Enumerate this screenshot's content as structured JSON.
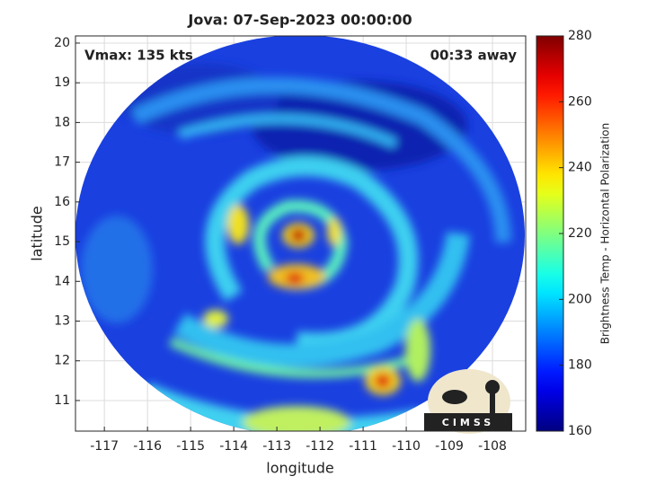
{
  "chart_data": {
    "type": "heatmap",
    "title": "Jova: 07-Sep-2023 00:00:00",
    "annotations": [
      "Vmax: 135 kts",
      "00:33 away"
    ],
    "xlabel": "longitude",
    "ylabel": "latitude",
    "xlim": [
      -117.67,
      -107.23
    ],
    "ylim": [
      10.23,
      20.18
    ],
    "xticks": [
      -117,
      -116,
      -115,
      -114,
      -113,
      -112,
      -111,
      -110,
      -109,
      -108
    ],
    "yticks": [
      11,
      12,
      13,
      14,
      15,
      16,
      17,
      18,
      19,
      20
    ],
    "colorbar_label": "Brightness Temp - Horizontal Polarization",
    "clim": [
      160,
      280
    ],
    "cticks": [
      160,
      180,
      200,
      220,
      240,
      260,
      280
    ],
    "colormap": "jet",
    "grid": true,
    "logo_text": "CIMSS"
  }
}
